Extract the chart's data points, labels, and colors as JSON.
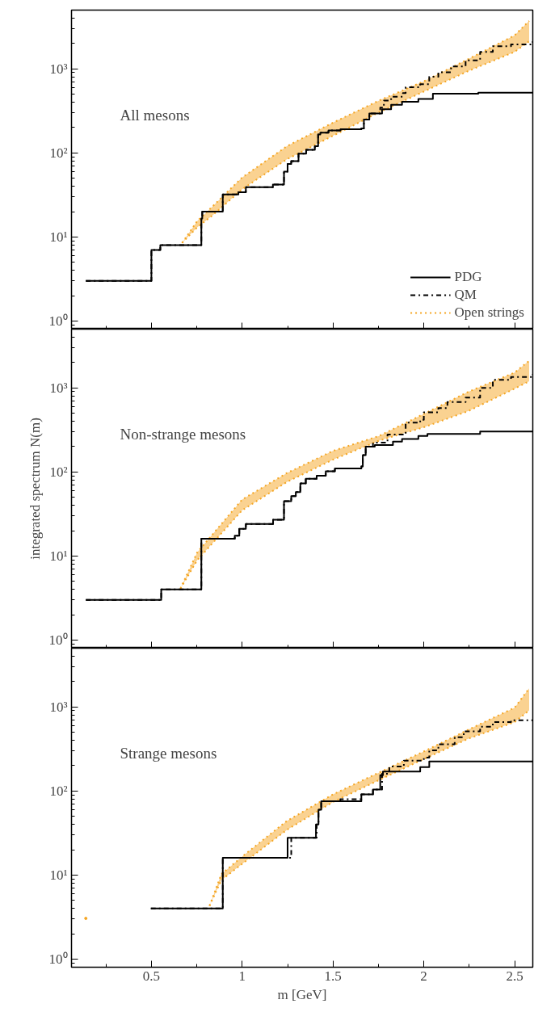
{
  "chart_data": [
    {
      "type": "step",
      "annotations": [
        "All mesons"
      ],
      "xlim": [
        0.06,
        2.6
      ],
      "ylim": [
        0.8,
        5000
      ],
      "log": "y",
      "legend": "bottom right",
      "tick_labels": "y",
      "xticks": [
        0.5,
        1,
        1.5,
        2,
        2.5
      ],
      "yticks": [
        {
          "value": 1,
          "label": "10⁰"
        },
        {
          "value": 10,
          "label": "10¹"
        },
        {
          "value": 100,
          "label": "10²"
        },
        {
          "value": 1000,
          "label": "10³"
        }
      ],
      "series": [
        {
          "name": "PDG",
          "color": "#000000",
          "line_style": "solid",
          "x": [
            0.139,
            0.5,
            0.549,
            0.775,
            0.78,
            0.893,
            0.979,
            1.02,
            1.169,
            1.23,
            1.25,
            1.27,
            1.31,
            1.352,
            1.4,
            1.418,
            1.43,
            1.475,
            1.541,
            1.656,
            1.67,
            1.7,
            1.77,
            1.82,
            1.88,
            1.97,
            2.05,
            2.3,
            2.6
          ],
          "values": [
            3,
            7,
            8,
            16.6,
            20,
            32,
            34,
            39,
            42,
            60,
            74,
            80,
            98,
            109,
            120,
            166,
            174,
            185,
            191,
            195,
            250,
            294,
            330,
            373,
            405,
            438,
            507,
            520,
            530
          ]
        },
        {
          "name": "QM",
          "color": "#000000",
          "line_style": "dashdot",
          "x": [
            0.139,
            0.5,
            0.549,
            0.775,
            0.78,
            0.893,
            0.979,
            1.02,
            1.169,
            1.23,
            1.25,
            1.27,
            1.31,
            1.352,
            1.4,
            1.418,
            1.43,
            1.475,
            1.541,
            1.656,
            1.67,
            1.7,
            1.76,
            1.78,
            1.82,
            1.885,
            1.9,
            1.98,
            2.03,
            2.08,
            2.15,
            2.23,
            2.31,
            2.38,
            2.48,
            2.6
          ],
          "values": [
            3,
            7,
            8,
            16.6,
            20,
            32,
            34,
            39,
            42,
            60,
            74,
            80,
            98,
            109,
            120,
            166,
            174,
            185,
            191,
            195,
            250,
            294,
            345,
            420,
            467,
            515,
            604,
            657,
            804,
            911,
            1070,
            1260,
            1590,
            1860,
            1950,
            2130
          ]
        },
        {
          "name": "Open strings",
          "type": "line",
          "color": "#f5a623",
          "line_style": "dotted",
          "x": [
            0.669,
            0.752,
            0.836,
            1.0,
            1.246,
            1.5,
            1.754,
            2.0,
            2.246,
            2.5,
            2.58
          ],
          "values": [
            8.5,
            15.4,
            23,
            51,
            120,
            229,
            420,
            710,
            1310,
            2500,
            3720
          ],
          "lower": [
            8.5,
            13,
            18,
            37,
            84,
            160,
            305,
            537,
            945,
            1590,
            2130
          ],
          "upper": [
            8.5,
            15.4,
            23,
            51,
            120,
            229,
            420,
            710,
            1310,
            2500,
            3720
          ]
        },
        {
          "type": "line",
          "color": "#f5a623",
          "line_style": "dotted",
          "x": [
            0.669,
            0.752,
            0.836,
            1.0,
            1.246,
            1.5,
            1.754,
            2.0,
            2.246,
            2.5,
            2.58
          ],
          "values": [
            8.5,
            13,
            18,
            37,
            84,
            160,
            305,
            537,
            945,
            1590,
            2130
          ]
        }
      ]
    },
    {
      "type": "step",
      "annotations": [
        "Non-strange mesons"
      ],
      "ylabel": "integrated spectrum N(m)",
      "xlim": [
        0.06,
        2.6
      ],
      "ylim": [
        0.8,
        5000
      ],
      "log": "y",
      "tick_labels": "y",
      "xticks": [
        0.5,
        1,
        1.5,
        2,
        2.5
      ],
      "yticks": [
        {
          "value": 1,
          "label": "10⁰"
        },
        {
          "value": 10,
          "label": "10¹"
        },
        {
          "value": 100,
          "label": "10²"
        },
        {
          "value": 1000,
          "label": "10³"
        }
      ],
      "series": [
        {
          "color": "#000000",
          "line_style": "solid",
          "x": [
            0.139,
            0.554,
            0.775,
            0.959,
            0.984,
            1.02,
            1.17,
            1.23,
            1.27,
            1.295,
            1.32,
            1.35,
            1.41,
            1.46,
            1.51,
            1.656,
            1.664,
            1.68,
            1.73,
            1.83,
            1.88,
            1.97,
            2.02,
            2.31,
            2.6
          ],
          "values": [
            3,
            4,
            16,
            17.4,
            21,
            24,
            27,
            45,
            51.6,
            57.5,
            73,
            83,
            90,
            102,
            110,
            116,
            158,
            200,
            209,
            229,
            247,
            268,
            283,
            302,
            302
          ]
        },
        {
          "color": "#000000",
          "line_style": "dashdot",
          "x": [
            0.139,
            0.554,
            0.775,
            0.959,
            0.984,
            1.02,
            1.17,
            1.23,
            1.27,
            1.295,
            1.32,
            1.35,
            1.41,
            1.46,
            1.51,
            1.656,
            1.664,
            1.68,
            1.72,
            1.8,
            1.9,
            1.98,
            2.0,
            2.08,
            2.13,
            2.23,
            2.31,
            2.38,
            2.48,
            2.6
          ],
          "values": [
            3,
            4,
            16,
            17.4,
            21,
            24,
            27,
            45,
            51.6,
            57.5,
            73,
            83,
            90,
            102,
            110,
            116,
            158,
            200,
            223,
            278,
            385,
            418,
            512,
            575,
            677,
            765,
            1000,
            1245,
            1350,
            1460
          ]
        },
        {
          "type": "line",
          "color": "#f5a623",
          "line_style": "dotted",
          "x": [
            0.66,
            0.752,
            1.0,
            1.246,
            1.5,
            1.754,
            2.0,
            2.246,
            2.5,
            2.58
          ],
          "values": [
            4.1,
            11,
            47,
            97,
            178,
            268,
            490,
            900,
            1520,
            2100
          ],
          "lower": [
            4.1,
            8.9,
            35,
            76,
            140,
            236,
            340,
            531,
            980,
            1200
          ],
          "upper": [
            4.1,
            11,
            47,
            97,
            178,
            268,
            490,
            900,
            1520,
            2100
          ]
        },
        {
          "type": "line",
          "color": "#f5a623",
          "line_style": "dotted",
          "x": [
            0.66,
            0.752,
            1.0,
            1.246,
            1.5,
            1.754,
            2.0,
            2.246,
            2.5,
            2.58
          ],
          "values": [
            4.1,
            8.9,
            35,
            76,
            140,
            236,
            340,
            531,
            980,
            1200
          ]
        }
      ]
    },
    {
      "type": "step",
      "annotations": [
        "Strange mesons"
      ],
      "xlabel": "m [GeV]",
      "xlim": [
        0.06,
        2.6
      ],
      "ylim": [
        0.8,
        5000
      ],
      "log": "y",
      "xticks": [
        0.5,
        1,
        1.5,
        2,
        2.5
      ],
      "yticks": [
        {
          "value": 1,
          "label": "10⁰"
        },
        {
          "value": 10,
          "label": "10¹"
        },
        {
          "value": 100,
          "label": "10²"
        },
        {
          "value": 1000,
          "label": "10³"
        }
      ],
      "series": [
        {
          "color": "#000000",
          "line_style": "solid",
          "x": [
            0.497,
            0.893,
            1.25,
            1.406,
            1.42,
            1.435,
            1.656,
            1.72,
            1.76,
            1.775,
            1.98,
            2.03,
            2.6
          ],
          "values": [
            4,
            16,
            27.7,
            40,
            60,
            75.6,
            91,
            104,
            154,
            170,
            192,
            224,
            224
          ]
        },
        {
          "color": "#000000",
          "line_style": "dashdot",
          "x": [
            0.497,
            0.893,
            1.27,
            1.41,
            1.42,
            1.435,
            1.54,
            1.656,
            1.72,
            1.77,
            1.81,
            1.89,
            2.0,
            2.03,
            2.08,
            2.17,
            2.22,
            2.31,
            2.38,
            2.48,
            2.6
          ],
          "values": [
            4,
            16,
            27.7,
            40,
            60,
            75.6,
            80,
            91,
            104,
            160,
            195,
            230,
            250,
            305,
            359,
            437,
            513,
            582,
            660,
            693,
            693
          ]
        },
        {
          "type": "line",
          "color": "#f5a623",
          "line_style": "dotted",
          "x": [
            0.82,
            0.885,
            1.0,
            1.246,
            1.5,
            1.754,
            2.0,
            2.246,
            2.5,
            2.58
          ],
          "values": [
            4.3,
            10.2,
            16.6,
            44,
            91,
            166,
            295,
            537,
            980,
            1660
          ],
          "lower": [
            4.3,
            8.7,
            13.6,
            34.5,
            74,
            135,
            240,
            420,
            660,
            910
          ],
          "upper": [
            4.3,
            10.2,
            16.6,
            44,
            91,
            166,
            295,
            537,
            980,
            1660
          ]
        },
        {
          "type": "line",
          "color": "#f5a623",
          "line_style": "dotted",
          "x": [
            0.82,
            0.885,
            1.0,
            1.246,
            1.5,
            1.754,
            2.0,
            2.246,
            2.5,
            2.58
          ],
          "values": [
            4.3,
            8.7,
            13.6,
            34.5,
            74,
            135,
            240,
            420,
            660,
            910
          ]
        },
        {
          "type": "scatter",
          "color": "#f5a623",
          "marker": "circle",
          "x": [
            0.139
          ],
          "values": [
            3.05
          ]
        }
      ]
    }
  ]
}
